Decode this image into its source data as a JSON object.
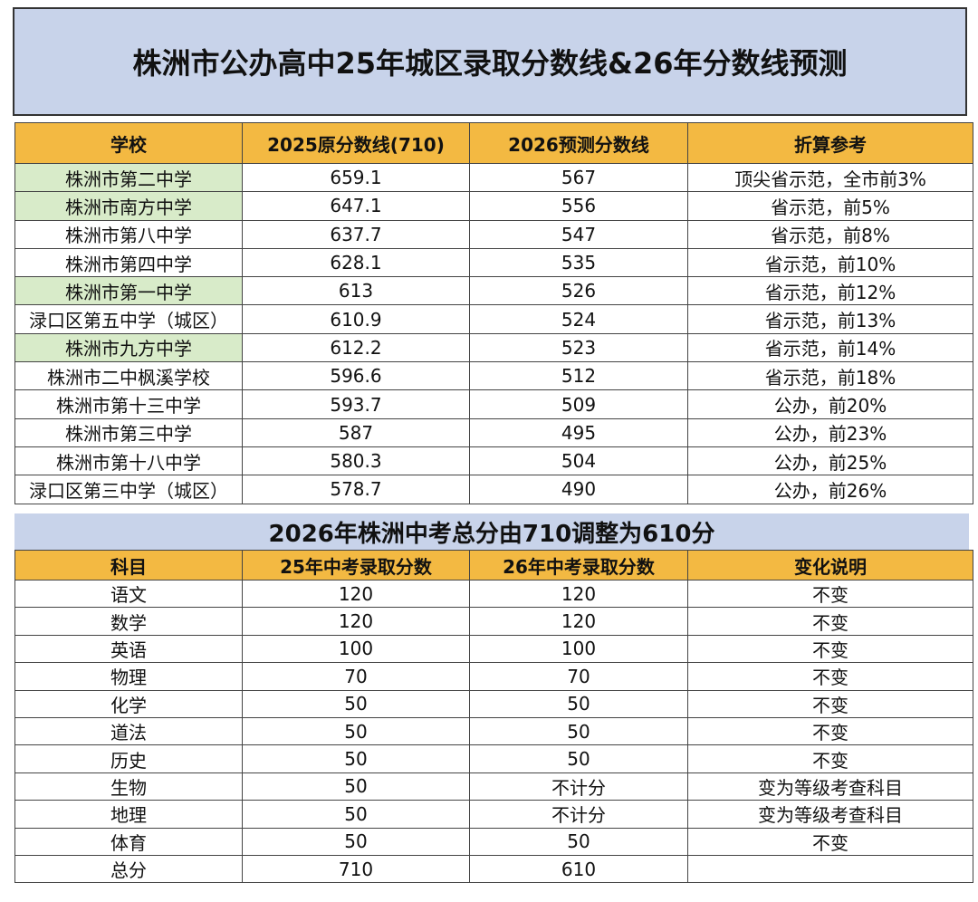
{
  "title": "株洲市公办高中25年城区录取分数线&26年分数线预测",
  "table1": {
    "headers": [
      "学校",
      "2025原分数线(710)",
      "2026预测分数线",
      "折算参考"
    ],
    "rows": [
      {
        "school": "株洲市第二中学",
        "score2025": "659.1",
        "score2026": "567",
        "note": "顶尖省示范，全市前3%",
        "green": true
      },
      {
        "school": "株洲市南方中学",
        "score2025": "647.1",
        "score2026": "556",
        "note": "省示范，前5%",
        "green": true
      },
      {
        "school": "株洲市第八中学",
        "score2025": "637.7",
        "score2026": "547",
        "note": "省示范，前8%",
        "green": false
      },
      {
        "school": "株洲市第四中学",
        "score2025": "628.1",
        "score2026": "535",
        "note": "省示范，前10%",
        "green": false
      },
      {
        "school": "株洲市第一中学",
        "score2025": "613",
        "score2026": "526",
        "note": "省示范，前12%",
        "green": true
      },
      {
        "school": "渌口区第五中学（城区）",
        "score2025": "610.9",
        "score2026": "524",
        "note": "省示范，前13%",
        "green": false
      },
      {
        "school": "株洲市九方中学",
        "score2025": "612.2",
        "score2026": "523",
        "note": "省示范，前14%",
        "green": true
      },
      {
        "school": "株洲市二中枫溪学校",
        "score2025": "596.6",
        "score2026": "512",
        "note": "省示范，前18%",
        "green": false
      },
      {
        "school": "株洲市第十三中学",
        "score2025": "593.7",
        "score2026": "509",
        "note": "公办，前20%",
        "green": false
      },
      {
        "school": "株洲市第三中学",
        "score2025": "587",
        "score2026": "495",
        "note": "公办，前23%",
        "green": false
      },
      {
        "school": "株洲市第十八中学",
        "score2025": "580.3",
        "score2026": "504",
        "note": "公办，前25%",
        "green": false
      },
      {
        "school": "渌口区第三中学（城区）",
        "score2025": "578.7",
        "score2026": "490",
        "note": "公办，前26%",
        "green": false
      }
    ]
  },
  "subtitle": "2026年株洲中考总分由710调整为610分",
  "table2": {
    "headers": [
      "科目",
      "25年中考录取分数",
      "26年中考录取分数",
      "变化说明"
    ],
    "rows": [
      {
        "subject": "语文",
        "s25": "120",
        "s26": "120",
        "change": "不变"
      },
      {
        "subject": "数学",
        "s25": "120",
        "s26": "120",
        "change": "不变"
      },
      {
        "subject": "英语",
        "s25": "100",
        "s26": "100",
        "change": "不变"
      },
      {
        "subject": "物理",
        "s25": "70",
        "s26": "70",
        "change": "不变"
      },
      {
        "subject": "化学",
        "s25": "50",
        "s26": "50",
        "change": "不变"
      },
      {
        "subject": "道法",
        "s25": "50",
        "s26": "50",
        "change": "不变"
      },
      {
        "subject": "历史",
        "s25": "50",
        "s26": "50",
        "change": "不变"
      },
      {
        "subject": "生物",
        "s25": "50",
        "s26": "不计分",
        "change": "变为等级考查科目"
      },
      {
        "subject": "地理",
        "s25": "50",
        "s26": "不计分",
        "change": "变为等级考查科目"
      },
      {
        "subject": "体育",
        "s25": "50",
        "s26": "50",
        "change": "不变"
      },
      {
        "subject": "总分",
        "s25": "710",
        "s26": "610",
        "change": ""
      }
    ]
  }
}
